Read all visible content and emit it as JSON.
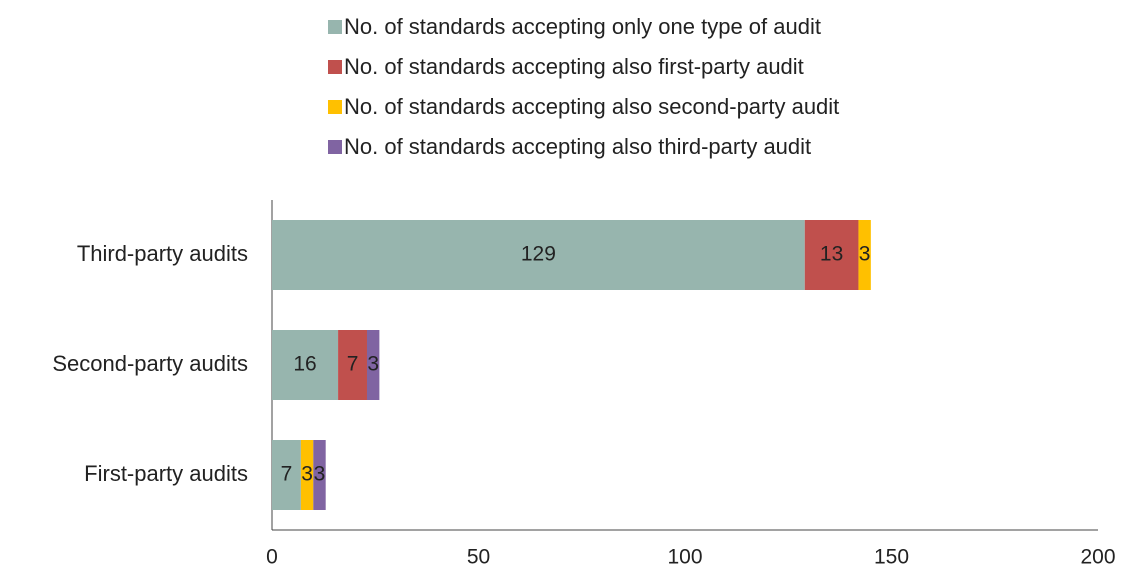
{
  "chart_data": {
    "type": "stacked_barh",
    "categories": [
      "Third-party audits",
      "Second-party audits",
      "First-party audits"
    ],
    "series": [
      {
        "name": "No. of standards accepting only one type of audit",
        "color": "#97b5ae",
        "values": [
          129,
          16,
          7
        ]
      },
      {
        "name": "No. of standards accepting also first-party audit",
        "color": "#c0504d",
        "values": [
          13,
          7,
          null
        ]
      },
      {
        "name": "No. of standards accepting also second-party audit",
        "color": "#ffc000",
        "values": [
          3,
          null,
          3
        ]
      },
      {
        "name": "No. of standards accepting also third-party audit",
        "color": "#8064a2",
        "values": [
          null,
          3,
          3
        ]
      }
    ],
    "xlim": [
      0,
      200
    ],
    "xticks": [
      0,
      50,
      100,
      150,
      200
    ],
    "grid": false
  }
}
